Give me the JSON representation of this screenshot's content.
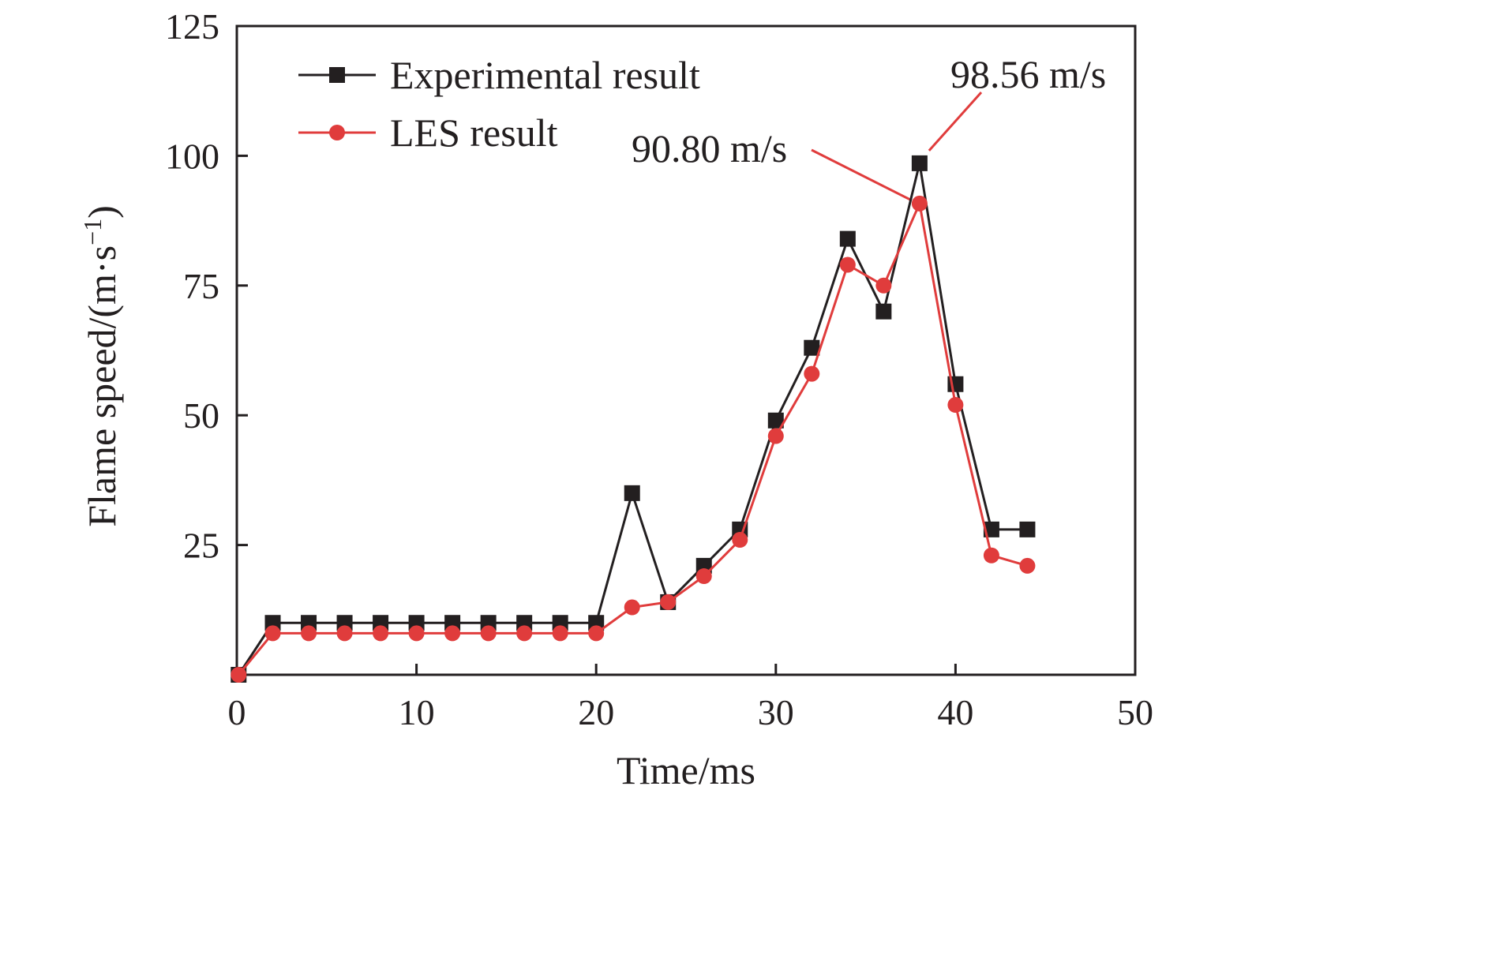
{
  "chart_data": {
    "type": "line",
    "title": "",
    "xlabel": "Time/ms",
    "ylabel": "Flame speed/(m·s",
    "ylabel_sup": "−1",
    "ylabel_close": ")",
    "xlim": [
      0,
      50
    ],
    "ylim": [
      0,
      125
    ],
    "xticks": [
      0,
      10,
      20,
      30,
      40,
      50
    ],
    "yticks": [
      25,
      50,
      75,
      100,
      125
    ],
    "grid": false,
    "legend_position": "top-left",
    "series": [
      {
        "name": "Experimental result",
        "color": "#231f20",
        "marker": "square",
        "x": [
          0.1,
          2,
          4,
          6,
          8,
          10,
          12,
          14,
          16,
          18,
          20,
          22,
          24,
          26,
          28,
          30,
          32,
          34,
          36,
          38,
          40,
          42,
          44
        ],
        "y": [
          0,
          10,
          10,
          10,
          10,
          10,
          10,
          10,
          10,
          10,
          10,
          35,
          14,
          21,
          28,
          49,
          63,
          84,
          70,
          98.56,
          56,
          28,
          28
        ]
      },
      {
        "name": "LES result",
        "color": "#e03c3c",
        "marker": "circle",
        "x": [
          0.1,
          2,
          4,
          6,
          8,
          10,
          12,
          14,
          16,
          18,
          20,
          22,
          24,
          26,
          28,
          30,
          32,
          34,
          36,
          38,
          40,
          42,
          44
        ],
        "y": [
          0,
          8,
          8,
          8,
          8,
          8,
          8,
          8,
          8,
          8,
          8,
          13,
          14,
          19,
          26,
          46,
          58,
          79,
          75,
          90.8,
          52,
          23,
          21
        ]
      }
    ],
    "annotations": [
      {
        "text": "98.56 m/s",
        "x": 38,
        "y": 98.56,
        "color": "#e03c3c"
      },
      {
        "text": "90.80 m/s",
        "x": 38,
        "y": 90.8,
        "color": "#e03c3c"
      }
    ]
  }
}
